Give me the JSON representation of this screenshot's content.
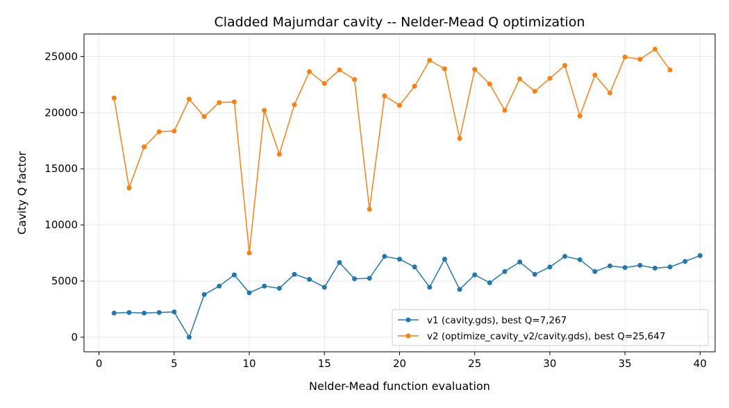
{
  "chart_data": {
    "type": "line",
    "title": "Cladded Majumdar cavity -- Nelder-Mead Q optimization",
    "xlabel": "Nelder-Mead function evaluation",
    "ylabel": "Cavity Q factor",
    "xlim": [
      -1,
      41
    ],
    "ylim": [
      -1300,
      27000
    ],
    "xticks": [
      0,
      5,
      10,
      15,
      20,
      25,
      30,
      35,
      40
    ],
    "yticks": [
      0,
      5000,
      10000,
      15000,
      20000,
      25000
    ],
    "grid": true,
    "legend_position": "lower-right",
    "series": [
      {
        "name": "v1 (cavity.gds), best Q=7,267",
        "color": "#1f77b4",
        "x": [
          1,
          2,
          3,
          4,
          5,
          6,
          7,
          8,
          9,
          10,
          11,
          12,
          13,
          14,
          15,
          16,
          17,
          18,
          19,
          20,
          21,
          22,
          23,
          24,
          25,
          26,
          27,
          28,
          29,
          30,
          31,
          32,
          33,
          34,
          35,
          36,
          37,
          38,
          39,
          40
        ],
        "y": [
          2150,
          2200,
          2150,
          2200,
          2250,
          0,
          3800,
          4550,
          5550,
          3950,
          4550,
          4350,
          5600,
          5150,
          4450,
          6650,
          5200,
          5250,
          7200,
          6950,
          6250,
          4450,
          6950,
          4250,
          5550,
          4850,
          5850,
          6700,
          5600,
          6250,
          7200,
          6900,
          5850,
          6350,
          6200,
          6400,
          6150,
          6250,
          6750,
          7267
        ]
      },
      {
        "name": "v2 (optimize_cavity_v2/cavity.gds), best Q=25,647",
        "color": "#ff7f0e",
        "x": [
          1,
          2,
          3,
          4,
          5,
          6,
          7,
          8,
          9,
          10,
          11,
          12,
          13,
          14,
          15,
          16,
          17,
          18,
          19,
          20,
          21,
          22,
          23,
          24,
          25,
          26,
          27,
          28,
          29,
          30,
          31,
          32,
          33,
          34,
          35,
          36,
          37,
          38
        ],
        "y": [
          21300,
          13300,
          16950,
          18300,
          18350,
          21200,
          19650,
          20900,
          20950,
          7500,
          20200,
          16300,
          20700,
          23650,
          22600,
          23800,
          22950,
          11400,
          21500,
          20650,
          22350,
          24650,
          23900,
          17700,
          23850,
          22550,
          20200,
          23000,
          21900,
          23050,
          24200,
          19700,
          23350,
          21750,
          24950,
          24750,
          25647,
          23800
        ]
      }
    ]
  }
}
